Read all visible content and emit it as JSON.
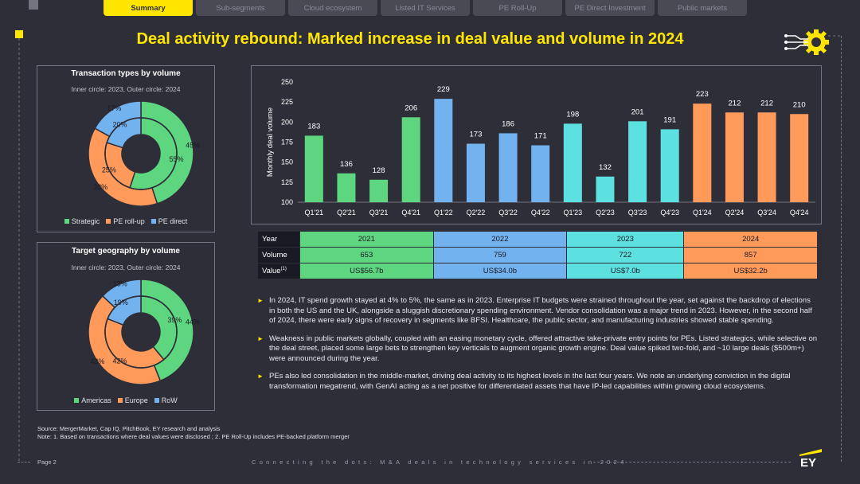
{
  "tabs": [
    {
      "label": "Summary",
      "active": true
    },
    {
      "label": "Sub-segments",
      "active": false
    },
    {
      "label": "Cloud ecosystem",
      "active": false
    },
    {
      "label": "Listed IT Services",
      "active": false
    },
    {
      "label": "PE Roll-Up",
      "active": false
    },
    {
      "label": "PE Direct Investment",
      "active": false
    },
    {
      "label": "Public markets",
      "active": false
    }
  ],
  "title": "Deal activity rebound: Marked increase in deal value and volume in 2024",
  "colors": {
    "green": "#5ed67f",
    "orange": "#ff9a5a",
    "blue": "#72b3ef",
    "teal": "#5de0e0",
    "yellow": "#ffe600"
  },
  "transaction_types": {
    "title": "Transaction types by volume",
    "subtitle": "Inner circle: 2023, Outer circle: 2024",
    "legend": [
      "Strategic",
      "PE roll-up",
      "PE direct"
    ],
    "inner_pct": [
      55,
      25,
      20
    ],
    "outer_pct": [
      45,
      38,
      17
    ],
    "inner_labels": [
      "55%",
      "25%",
      "20%"
    ],
    "outer_labels": [
      "45%",
      "38%",
      "17%"
    ]
  },
  "target_geography": {
    "title": "Target geography by volume",
    "subtitle": "Inner circle: 2023, Outer circle: 2024",
    "legend": [
      "Americas",
      "Europe",
      "RoW"
    ],
    "inner_pct": [
      39,
      42,
      19
    ],
    "outer_pct": [
      44,
      43,
      13
    ],
    "inner_labels": [
      "39%",
      "42%",
      "19%"
    ],
    "outer_labels": [
      "44%",
      "43%",
      "13%"
    ]
  },
  "chart_data": {
    "type": "bar",
    "title": "",
    "xlabel": "",
    "ylabel": "Monthly deal volume",
    "ylim": [
      100,
      250
    ],
    "yticks": [
      100,
      125,
      150,
      175,
      200,
      225,
      250
    ],
    "categories": [
      "Q1'21",
      "Q2'21",
      "Q3'21",
      "Q4'21",
      "Q1'22",
      "Q2'22",
      "Q3'22",
      "Q4'22",
      "Q1'23",
      "Q2'23",
      "Q3'23",
      "Q4'23",
      "Q1'24",
      "Q2'24",
      "Q3'24",
      "Q4'24"
    ],
    "values": [
      183,
      136,
      128,
      206,
      229,
      173,
      186,
      171,
      198,
      132,
      201,
      191,
      223,
      212,
      212,
      210
    ],
    "series_colors": [
      "#5ed67f",
      "#5ed67f",
      "#5ed67f",
      "#5ed67f",
      "#72b3ef",
      "#72b3ef",
      "#72b3ef",
      "#72b3ef",
      "#5de0e0",
      "#5de0e0",
      "#5de0e0",
      "#5de0e0",
      "#ff9a5a",
      "#ff9a5a",
      "#ff9a5a",
      "#ff9a5a"
    ]
  },
  "summary_table": {
    "row_labels": [
      "Year",
      "Volume",
      "Value(1)"
    ],
    "value_label_base": "Value",
    "value_label_sup": "(1)",
    "years": [
      "2021",
      "2022",
      "2023",
      "2024"
    ],
    "volume": [
      "653",
      "759",
      "722",
      "857"
    ],
    "value": [
      "US$56.7b",
      "US$34.0b",
      "US$7.0b",
      "US$32.2b"
    ]
  },
  "bullets": [
    "In 2024, IT spend growth stayed at 4% to 5%, the same as in 2023. Enterprise IT budgets were strained throughout the year, set against the backdrop of elections in both the US and the UK, alongside a sluggish discretionary spending environment. Vendor consolidation was a major trend in 2023. However, in the second half of 2024, there were early signs of recovery in segments like BFSI. Healthcare, the public sector, and manufacturing industries showed stable spending.",
    "Weakness in public markets globally, coupled with an easing monetary cycle, offered attractive take-private entry points for PEs. Listed strategics, while selective on the deal street, placed some large bets to strengthen key verticals to augment organic growth engine. Deal value spiked two-fold, and ~10 large deals ($500m+) were announced during the year.",
    "PEs also led consolidation in the middle-market, driving deal activity to its highest levels in the last four years. We note an underlying conviction in the digital transformation megatrend, with GenAI acting as a net positive for differentiated assets that have IP-led capabilities within growing cloud ecosystems."
  ],
  "source_line": "Source: MergerMarket, Cap IQ, PitchBook, EY research and analysis",
  "note_line": "Note: 1. Based on transactions where deal values were disclosed ; 2. PE Roll-Up includes PE-backed platform merger",
  "footer": {
    "page": "Page 2",
    "text": "Connecting the dots: M&A deals in technology services in 2024",
    "logo": "EY"
  }
}
